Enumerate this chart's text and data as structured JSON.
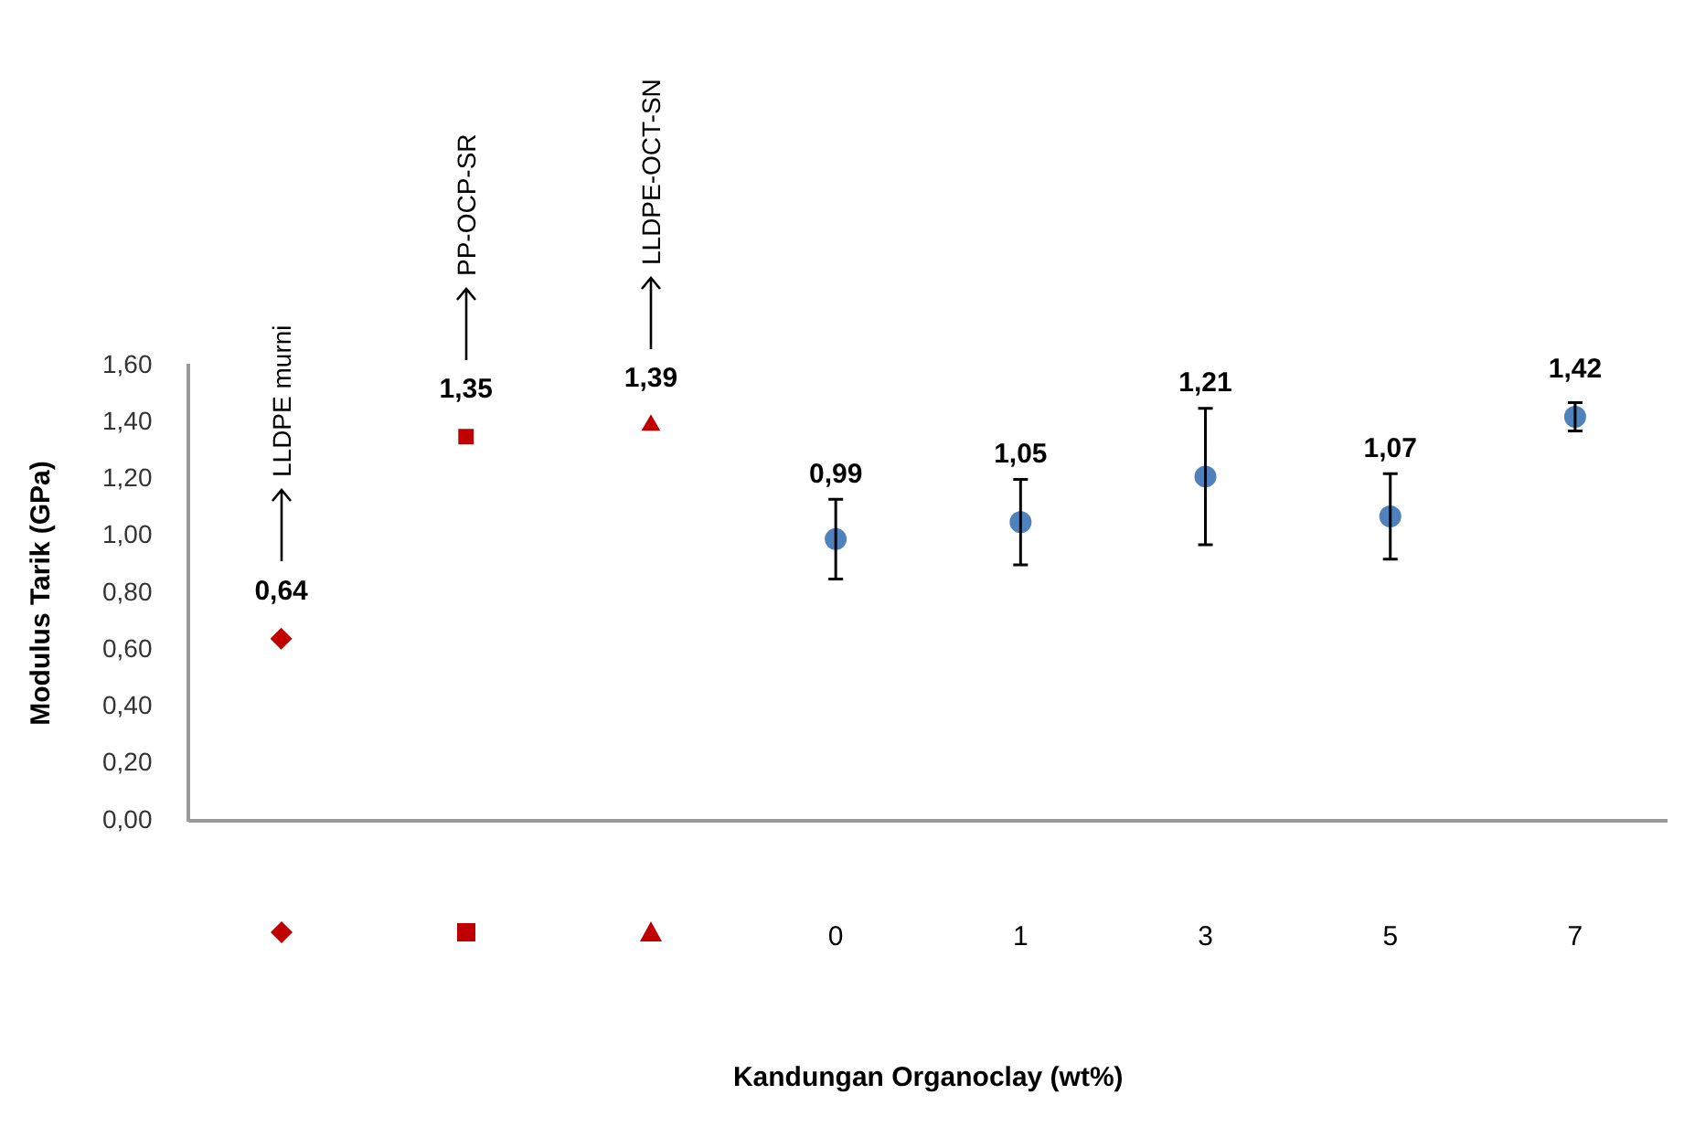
{
  "chart_data": {
    "type": "scatter",
    "ylabel": "Modulus Tarik (GPa)",
    "xlabel": "Kandungan Organoclay (wt%)",
    "categories": [
      null,
      null,
      null,
      "0",
      "1",
      "3",
      "5",
      "7"
    ],
    "series": [
      {
        "color": "#c00000",
        "marker": "diamond",
        "values": [
          0.64,
          null,
          null,
          null,
          null,
          null,
          null,
          null
        ],
        "value_labels": [
          "0,64",
          null,
          null,
          null,
          null,
          null,
          null,
          null
        ]
      },
      {
        "color": "#c00000",
        "marker": "square",
        "values": [
          null,
          1.35,
          null,
          null,
          null,
          null,
          null,
          null
        ],
        "value_labels": [
          null,
          "1,35",
          null,
          null,
          null,
          null,
          null,
          null
        ]
      },
      {
        "color": "#c00000",
        "marker": "triangle",
        "values": [
          null,
          null,
          1.39,
          null,
          null,
          null,
          null,
          null
        ],
        "value_labels": [
          null,
          null,
          "1,39",
          null,
          null,
          null,
          null,
          null
        ]
      },
      {
        "color": "#4f81bd",
        "marker": "circle",
        "values": [
          null,
          null,
          null,
          0.99,
          1.05,
          1.21,
          1.07,
          1.42
        ],
        "errors": [
          null,
          null,
          null,
          0.14,
          0.15,
          0.24,
          0.15,
          0.05
        ],
        "value_labels": [
          null,
          null,
          null,
          "0,99",
          "1,05",
          "1,21",
          "1,07",
          "1,42"
        ]
      }
    ],
    "ylim": [
      0,
      1.6
    ],
    "yticks": [
      {
        "value": 0,
        "label": "0,00"
      },
      {
        "value": 0.2,
        "label": "0,20"
      },
      {
        "value": 0.4,
        "label": "0,40"
      },
      {
        "value": 0.6,
        "label": "0,60"
      },
      {
        "value": 0.8,
        "label": "0,80"
      },
      {
        "value": 1,
        "label": "1,00"
      },
      {
        "value": 1.2,
        "label": "1,20"
      },
      {
        "value": 1.4,
        "label": "1,40"
      },
      {
        "value": 1.6,
        "label": "1,60"
      }
    ],
    "grid": false,
    "legend": false,
    "annotations": [
      "LLDPE murni",
      "PP-OCP-SR",
      "LLDPE-OCT-SN"
    ]
  }
}
